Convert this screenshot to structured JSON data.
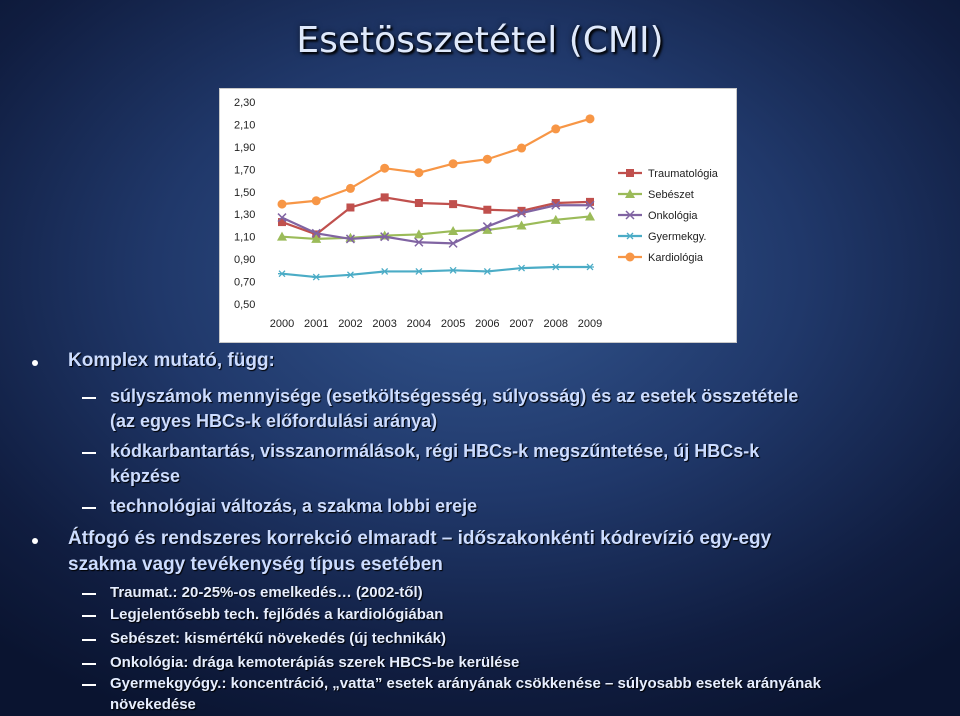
{
  "slide": {
    "title": "Esetösszetétel (CMI)"
  },
  "chart_data": {
    "type": "line",
    "x": [
      "2000",
      "2001",
      "2002",
      "2003",
      "2004",
      "2005",
      "2006",
      "2007",
      "2008",
      "2009"
    ],
    "yticks": [
      "2,30",
      "2,10",
      "1,90",
      "1,70",
      "1,50",
      "1,30",
      "1,10",
      "0,90",
      "0,70",
      "0,50"
    ],
    "ylim": [
      0.5,
      2.3
    ],
    "series": [
      {
        "name": "Traumatológia",
        "color": "#c0504d",
        "marker": "square",
        "values": [
          1.23,
          1.12,
          1.36,
          1.45,
          1.4,
          1.39,
          1.34,
          1.33,
          1.4,
          1.41
        ]
      },
      {
        "name": "Sebészet",
        "color": "#9bbb59",
        "marker": "triangle",
        "values": [
          1.1,
          1.08,
          1.09,
          1.11,
          1.12,
          1.15,
          1.16,
          1.2,
          1.25,
          1.28
        ]
      },
      {
        "name": "Onkológia",
        "color": "#8064a2",
        "marker": "x",
        "values": [
          1.27,
          1.13,
          1.08,
          1.1,
          1.05,
          1.04,
          1.19,
          1.31,
          1.38,
          1.38
        ]
      },
      {
        "name": "Gyermekgy.",
        "color": "#4bacc6",
        "marker": "star",
        "values": [
          0.77,
          0.74,
          0.76,
          0.79,
          0.79,
          0.8,
          0.79,
          0.82,
          0.83,
          0.83
        ]
      },
      {
        "name": "Kardiológia",
        "color": "#f79646",
        "marker": "circle",
        "values": [
          1.39,
          1.42,
          1.53,
          1.71,
          1.67,
          1.75,
          1.79,
          1.89,
          2.06,
          2.15
        ]
      }
    ]
  },
  "bullets": [
    {
      "level": 1,
      "lines": [
        "Komplex mutató, függ:"
      ]
    },
    {
      "level": 2,
      "lines": [
        "súlyszámok mennyisége (esetköltségesség, súlyosság) és az esetek összetétele",
        "(az egyes HBCs-k előfordulási aránya)"
      ]
    },
    {
      "level": 2,
      "lines": [
        "kódkarbantartás, visszanormálások, régi HBCs-k megszűntetése, új HBCs-k",
        "képzése"
      ]
    },
    {
      "level": 2,
      "lines": [
        "technológiai változás, a szakma lobbi ereje"
      ]
    },
    {
      "level": 1,
      "lines": [
        "Átfogó és rendszeres korrekció elmaradt – időszakonkénti kódrevízió egy-egy",
        "szakma vagy tevékenység típus esetében"
      ]
    },
    {
      "level": 3,
      "lines": [
        "Traumat.: 20-25%-os emelkedés… (2002-től)"
      ]
    },
    {
      "level": 3,
      "lines": [
        "Legjelentősebb tech. fejlődés a kardiológiában"
      ]
    },
    {
      "level": 3,
      "lines": [
        "Sebészet: kismértékű növekedés (új technikák)"
      ]
    },
    {
      "level": 3,
      "lines": [
        "Onkológia:  drága kemoterápiás szerek HBCS-be kerülése"
      ]
    },
    {
      "level": 3,
      "lines": [
        "Gyermekgyógy.: koncentráció, „vatta” esetek arányának csökkenése – súlyosabb esetek arányának",
        "növekedése"
      ]
    }
  ]
}
